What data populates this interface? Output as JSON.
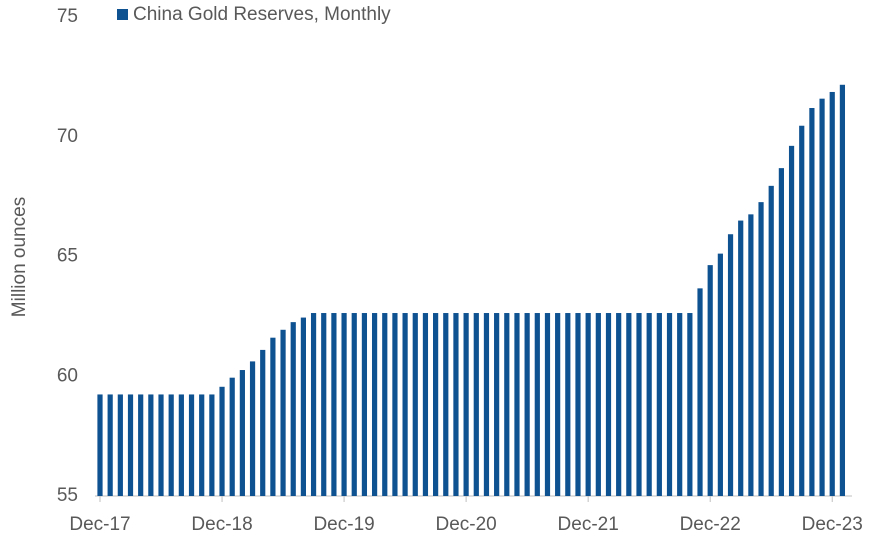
{
  "chart_data": {
    "type": "bar",
    "legend": "China Gold Reserves, Monthly",
    "y_label": "Million ounces",
    "color": "#0f5291",
    "categories": [
      "Dec-17",
      null,
      null,
      null,
      null,
      null,
      null,
      null,
      null,
      null,
      null,
      null,
      "Dec-18",
      null,
      null,
      null,
      null,
      null,
      null,
      null,
      null,
      null,
      null,
      null,
      "Dec-19",
      null,
      null,
      null,
      null,
      null,
      null,
      null,
      null,
      null,
      null,
      null,
      "Dec-20",
      null,
      null,
      null,
      null,
      null,
      null,
      null,
      null,
      null,
      null,
      null,
      "Dec-21",
      null,
      null,
      null,
      null,
      null,
      null,
      null,
      null,
      null,
      null,
      null,
      "Dec-22",
      null,
      null,
      null,
      null,
      null,
      null,
      null,
      null,
      null,
      null,
      null,
      "Dec-23",
      null
    ],
    "values": [
      59.24,
      59.24,
      59.24,
      59.24,
      59.24,
      59.24,
      59.24,
      59.24,
      59.24,
      59.24,
      59.24,
      59.24,
      59.56,
      59.94,
      60.26,
      60.62,
      61.1,
      61.61,
      61.94,
      62.26,
      62.45,
      62.64,
      62.64,
      62.64,
      62.64,
      62.64,
      62.64,
      62.64,
      62.64,
      62.64,
      62.64,
      62.64,
      62.64,
      62.64,
      62.64,
      62.64,
      62.64,
      62.64,
      62.64,
      62.64,
      62.64,
      62.64,
      62.64,
      62.64,
      62.64,
      62.64,
      62.64,
      62.64,
      62.64,
      62.64,
      62.64,
      62.64,
      62.64,
      62.64,
      62.64,
      62.64,
      62.64,
      62.64,
      62.64,
      63.67,
      64.64,
      65.12,
      65.93,
      66.5,
      66.76,
      67.27,
      67.95,
      68.69,
      69.62,
      70.46,
      71.2,
      71.59,
      71.87,
      72.17
    ],
    "ylim": [
      55,
      75
    ],
    "yticks": [
      55,
      60,
      65,
      70,
      75
    ]
  }
}
